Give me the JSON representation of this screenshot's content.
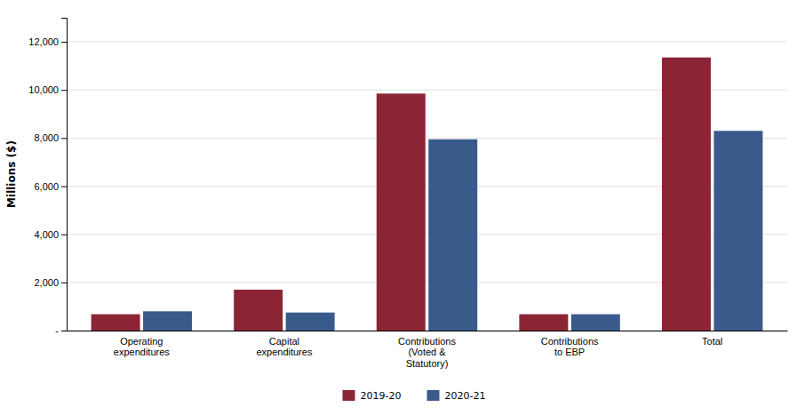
{
  "chart_data": {
    "type": "bar",
    "categories": [
      "Operating\nexpenditures",
      "Capital\nexpenditures",
      "Contributions\n(Voted &\nStatutory)",
      "Contributions\nto EBP",
      "Total"
    ],
    "series": [
      {
        "name": "2019-20",
        "color": "#8B2535",
        "values": [
          680,
          1700,
          9850,
          680,
          11350
        ]
      },
      {
        "name": "2020-21",
        "color": "#3A5A8C",
        "values": [
          800,
          750,
          7950,
          680,
          8300
        ]
      }
    ],
    "y_label": "Millions ($)",
    "ylim": [
      0,
      13000
    ],
    "yticks": [
      {
        "value": 0,
        "label": "-"
      },
      {
        "value": 2000,
        "label": "2,000"
      },
      {
        "value": 4000,
        "label": "4,000"
      },
      {
        "value": 6000,
        "label": "6,000"
      },
      {
        "value": 8000,
        "label": "8,000"
      },
      {
        "value": 10000,
        "label": "10,000"
      },
      {
        "value": 12000,
        "label": "12,000"
      }
    ],
    "grid": true,
    "legend": "bottom"
  }
}
